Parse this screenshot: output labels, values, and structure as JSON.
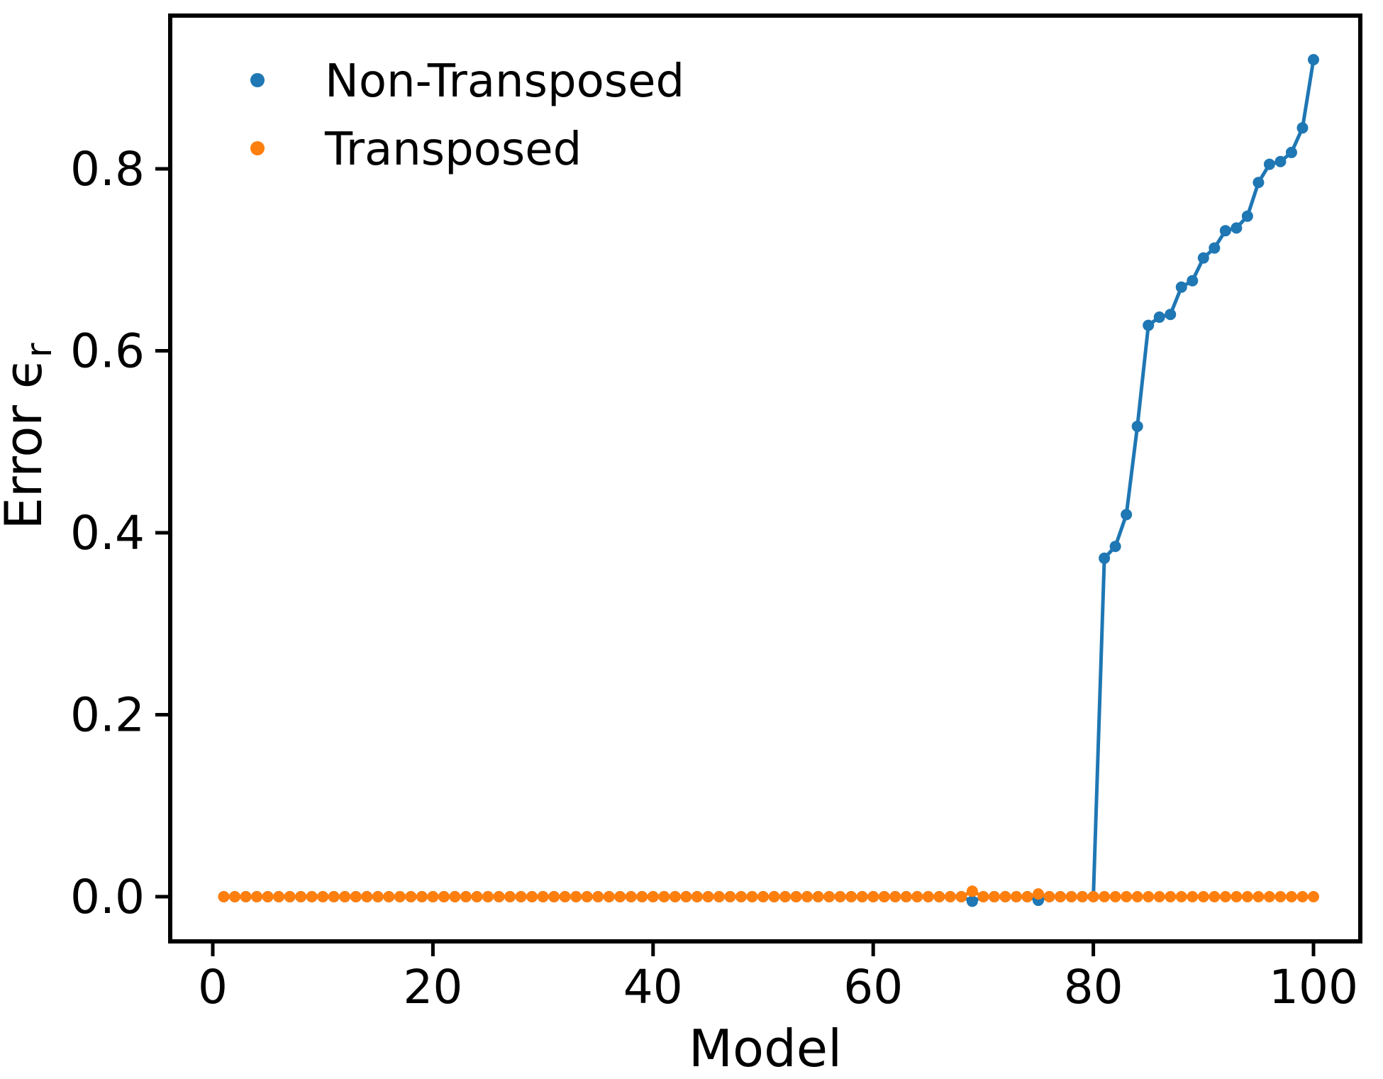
{
  "figure": {
    "background": "#ffffff",
    "text_color": "#000000"
  },
  "chart_data": {
    "type": "line",
    "title": "",
    "xlabel": "Model",
    "ylabel": "Error ϵᵣ",
    "ylabel_base": "Error ϵ",
    "ylabel_sub": "r",
    "grid": false,
    "legend": {
      "position": "upper-left",
      "frame": false,
      "entries": [
        "Non-Transposed",
        "Transposed"
      ]
    },
    "axes": {
      "x_ticks": [
        0,
        20,
        40,
        60,
        80,
        100
      ],
      "y_ticks": [
        0.0,
        0.2,
        0.4,
        0.6,
        0.8
      ],
      "xlim": [
        -3.9,
        104.3
      ],
      "ylim": [
        -0.049,
        0.968
      ]
    },
    "x": [
      1,
      2,
      3,
      4,
      5,
      6,
      7,
      8,
      9,
      10,
      11,
      12,
      13,
      14,
      15,
      16,
      17,
      18,
      19,
      20,
      21,
      22,
      23,
      24,
      25,
      26,
      27,
      28,
      29,
      30,
      31,
      32,
      33,
      34,
      35,
      36,
      37,
      38,
      39,
      40,
      41,
      42,
      43,
      44,
      45,
      46,
      47,
      48,
      49,
      50,
      51,
      52,
      53,
      54,
      55,
      56,
      57,
      58,
      59,
      60,
      61,
      62,
      63,
      64,
      65,
      66,
      67,
      68,
      69,
      70,
      71,
      72,
      73,
      74,
      75,
      76,
      77,
      78,
      79,
      80,
      81,
      82,
      83,
      84,
      85,
      86,
      87,
      88,
      89,
      90,
      91,
      92,
      93,
      94,
      95,
      96,
      97,
      98,
      99,
      100
    ],
    "series": [
      {
        "name": "Non-Transposed",
        "color": "#1f77b4",
        "values": [
          0,
          0,
          0,
          0,
          0,
          0,
          0,
          0,
          0,
          0,
          0,
          0,
          0,
          0,
          0,
          0,
          0,
          0,
          0,
          0,
          0,
          0,
          0,
          0,
          0,
          0,
          0,
          0,
          0,
          0,
          0,
          0,
          0,
          0,
          0,
          0,
          0,
          0,
          0,
          0,
          0,
          0,
          0,
          0,
          0,
          0,
          0,
          0,
          0,
          0,
          0,
          0,
          0,
          0,
          0,
          0,
          0,
          0,
          0,
          0,
          0,
          0,
          0,
          0,
          0,
          0,
          0,
          0,
          -0.005,
          0,
          0,
          0,
          0,
          0,
          -0.004,
          0,
          0,
          0,
          0,
          0,
          0.372,
          0.385,
          0.42,
          0.517,
          0.628,
          0.637,
          0.64,
          0.67,
          0.677,
          0.702,
          0.713,
          0.732,
          0.735,
          0.748,
          0.785,
          0.805,
          0.808,
          0.818,
          0.845,
          0.92
        ]
      },
      {
        "name": "Transposed",
        "color": "#ff7f0e",
        "values": [
          0,
          0,
          0,
          0,
          0,
          0,
          0,
          0,
          0,
          0,
          0,
          0,
          0,
          0,
          0,
          0,
          0,
          0,
          0,
          0,
          0,
          0,
          0,
          0,
          0,
          0,
          0,
          0,
          0,
          0,
          0,
          0,
          0,
          0,
          0,
          0,
          0,
          0,
          0,
          0,
          0,
          0,
          0,
          0,
          0,
          0,
          0,
          0,
          0,
          0,
          0,
          0,
          0,
          0,
          0,
          0,
          0,
          0,
          0,
          0,
          0,
          0,
          0,
          0,
          0,
          0,
          0,
          0,
          0.006,
          0,
          0,
          0,
          0,
          0,
          0.003,
          0,
          0,
          0,
          0,
          0,
          0,
          0,
          0,
          0,
          0,
          0,
          0,
          0,
          0,
          0,
          0,
          0,
          0,
          0,
          0,
          0,
          0,
          0,
          0,
          0
        ]
      }
    ]
  }
}
